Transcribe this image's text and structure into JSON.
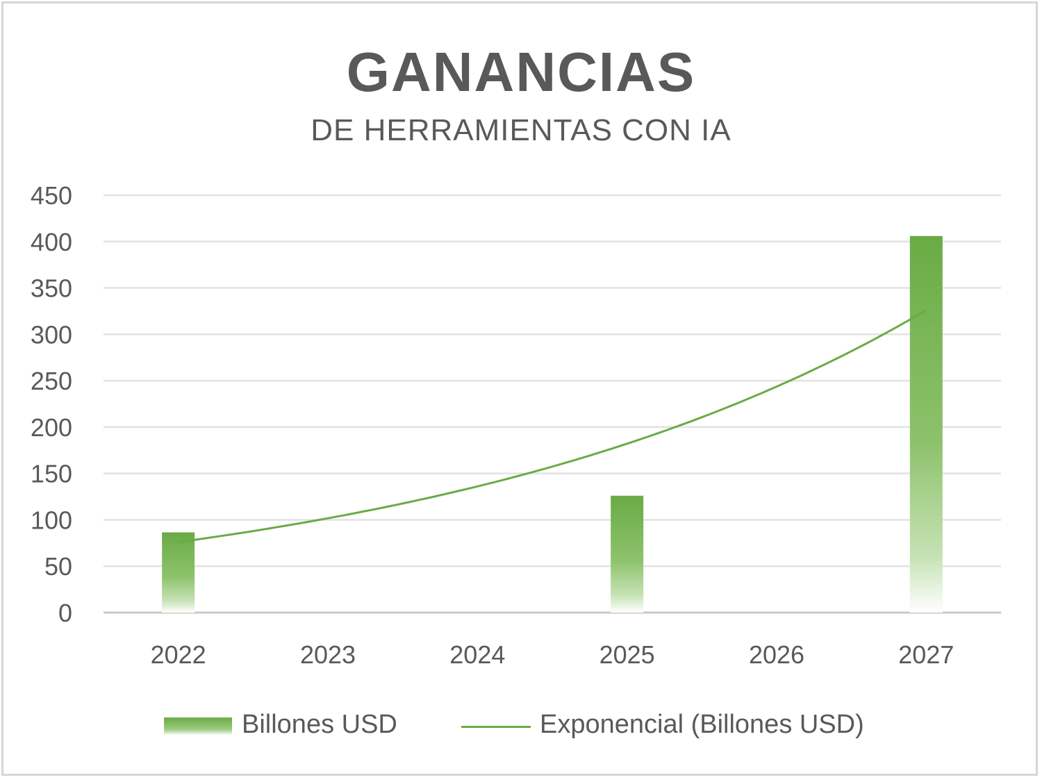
{
  "chart_data": {
    "type": "bar",
    "title": "GANANCIAS",
    "subtitle": "DE HERRAMIENTAS CON IA",
    "xlabel": "",
    "ylabel": "",
    "categories": [
      "2022",
      "2023",
      "2024",
      "2025",
      "2026",
      "2027"
    ],
    "series": [
      {
        "name": "Billones USD",
        "type": "bar",
        "values": [
          86.5,
          null,
          null,
          126,
          null,
          406
        ],
        "color": "#6aab45"
      },
      {
        "name": "Exponencial (Billones USD)",
        "type": "line",
        "values": [
          76,
          101,
          135,
          181,
          243,
          326
        ],
        "color": "#6aab45"
      }
    ],
    "ylim": [
      0,
      450
    ],
    "yticks": [
      0,
      50,
      100,
      150,
      200,
      250,
      300,
      350,
      400,
      450
    ],
    "grid": true,
    "legend_position": "bottom"
  },
  "legend": {
    "bar_label": "Billones USD",
    "line_label": "Exponencial (Billones USD)"
  }
}
